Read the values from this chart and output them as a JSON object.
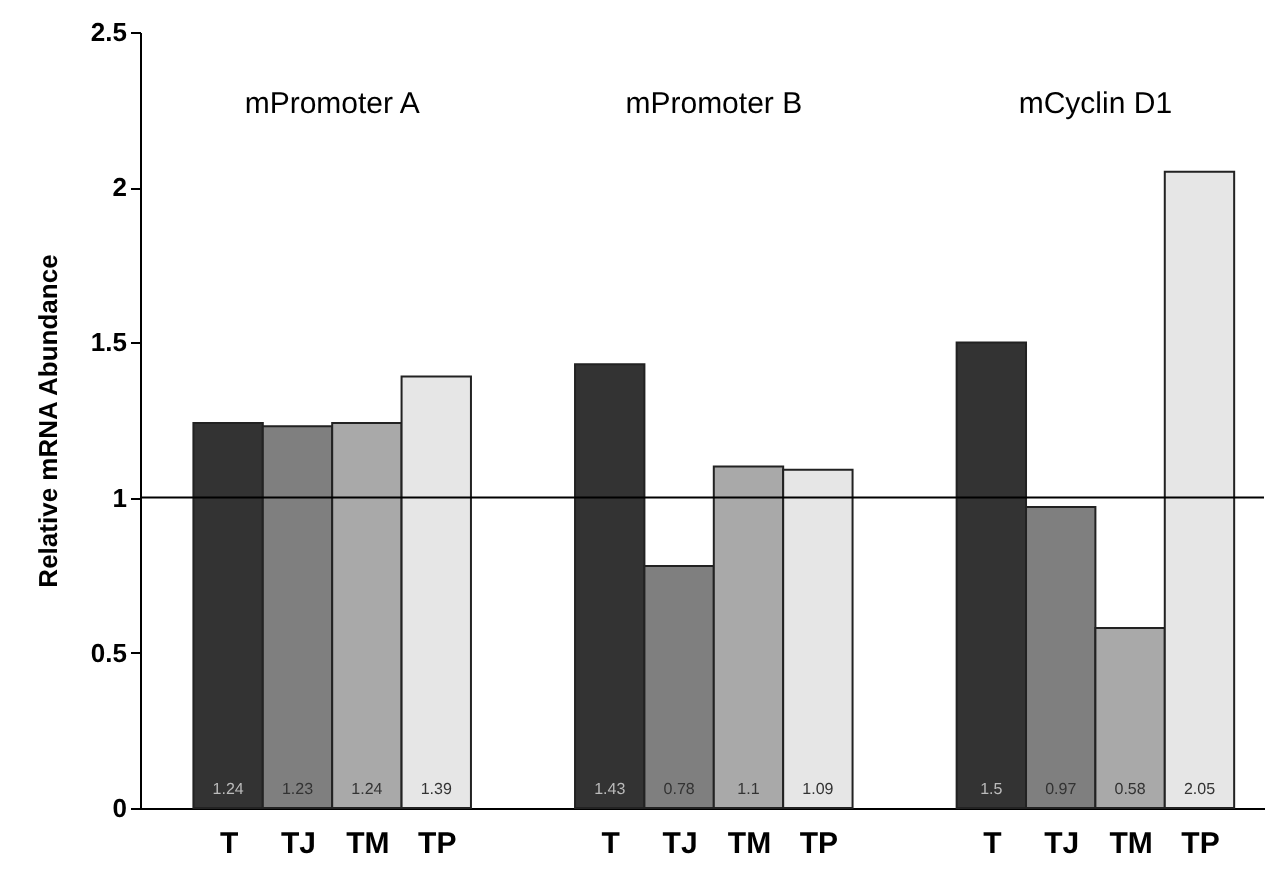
{
  "chart_data": {
    "type": "bar",
    "ylabel": "Relative mRNA Abundance",
    "categories": [
      "T",
      "TJ",
      "TM",
      "TP",
      "T",
      "TJ",
      "TM",
      "TP",
      "T",
      "TJ",
      "TM",
      "TP"
    ],
    "values": [
      1.24,
      1.23,
      1.24,
      1.39,
      1.43,
      0.78,
      1.1,
      1.09,
      1.5,
      0.97,
      0.58,
      2.05
    ],
    "colors": [
      "#333333",
      "#7f7f7f",
      "#a9a9a9",
      "#e6e6e6",
      "#333333",
      "#7f7f7f",
      "#a9a9a9",
      "#e6e6e6",
      "#333333",
      "#7f7f7f",
      "#a9a9a9",
      "#e6e6e6"
    ],
    "ylim": [
      0,
      2.5
    ],
    "yticks": [
      0,
      0.5,
      1,
      1.5,
      2,
      2.5
    ],
    "data_labels": true,
    "annotations": [
      "mPromoter A",
      "mPromoter B",
      "mCyclin D1"
    ],
    "ref_lines": [
      {
        "axis": "y",
        "value": 1,
        "color": "#000000"
      }
    ],
    "grid": false
  }
}
